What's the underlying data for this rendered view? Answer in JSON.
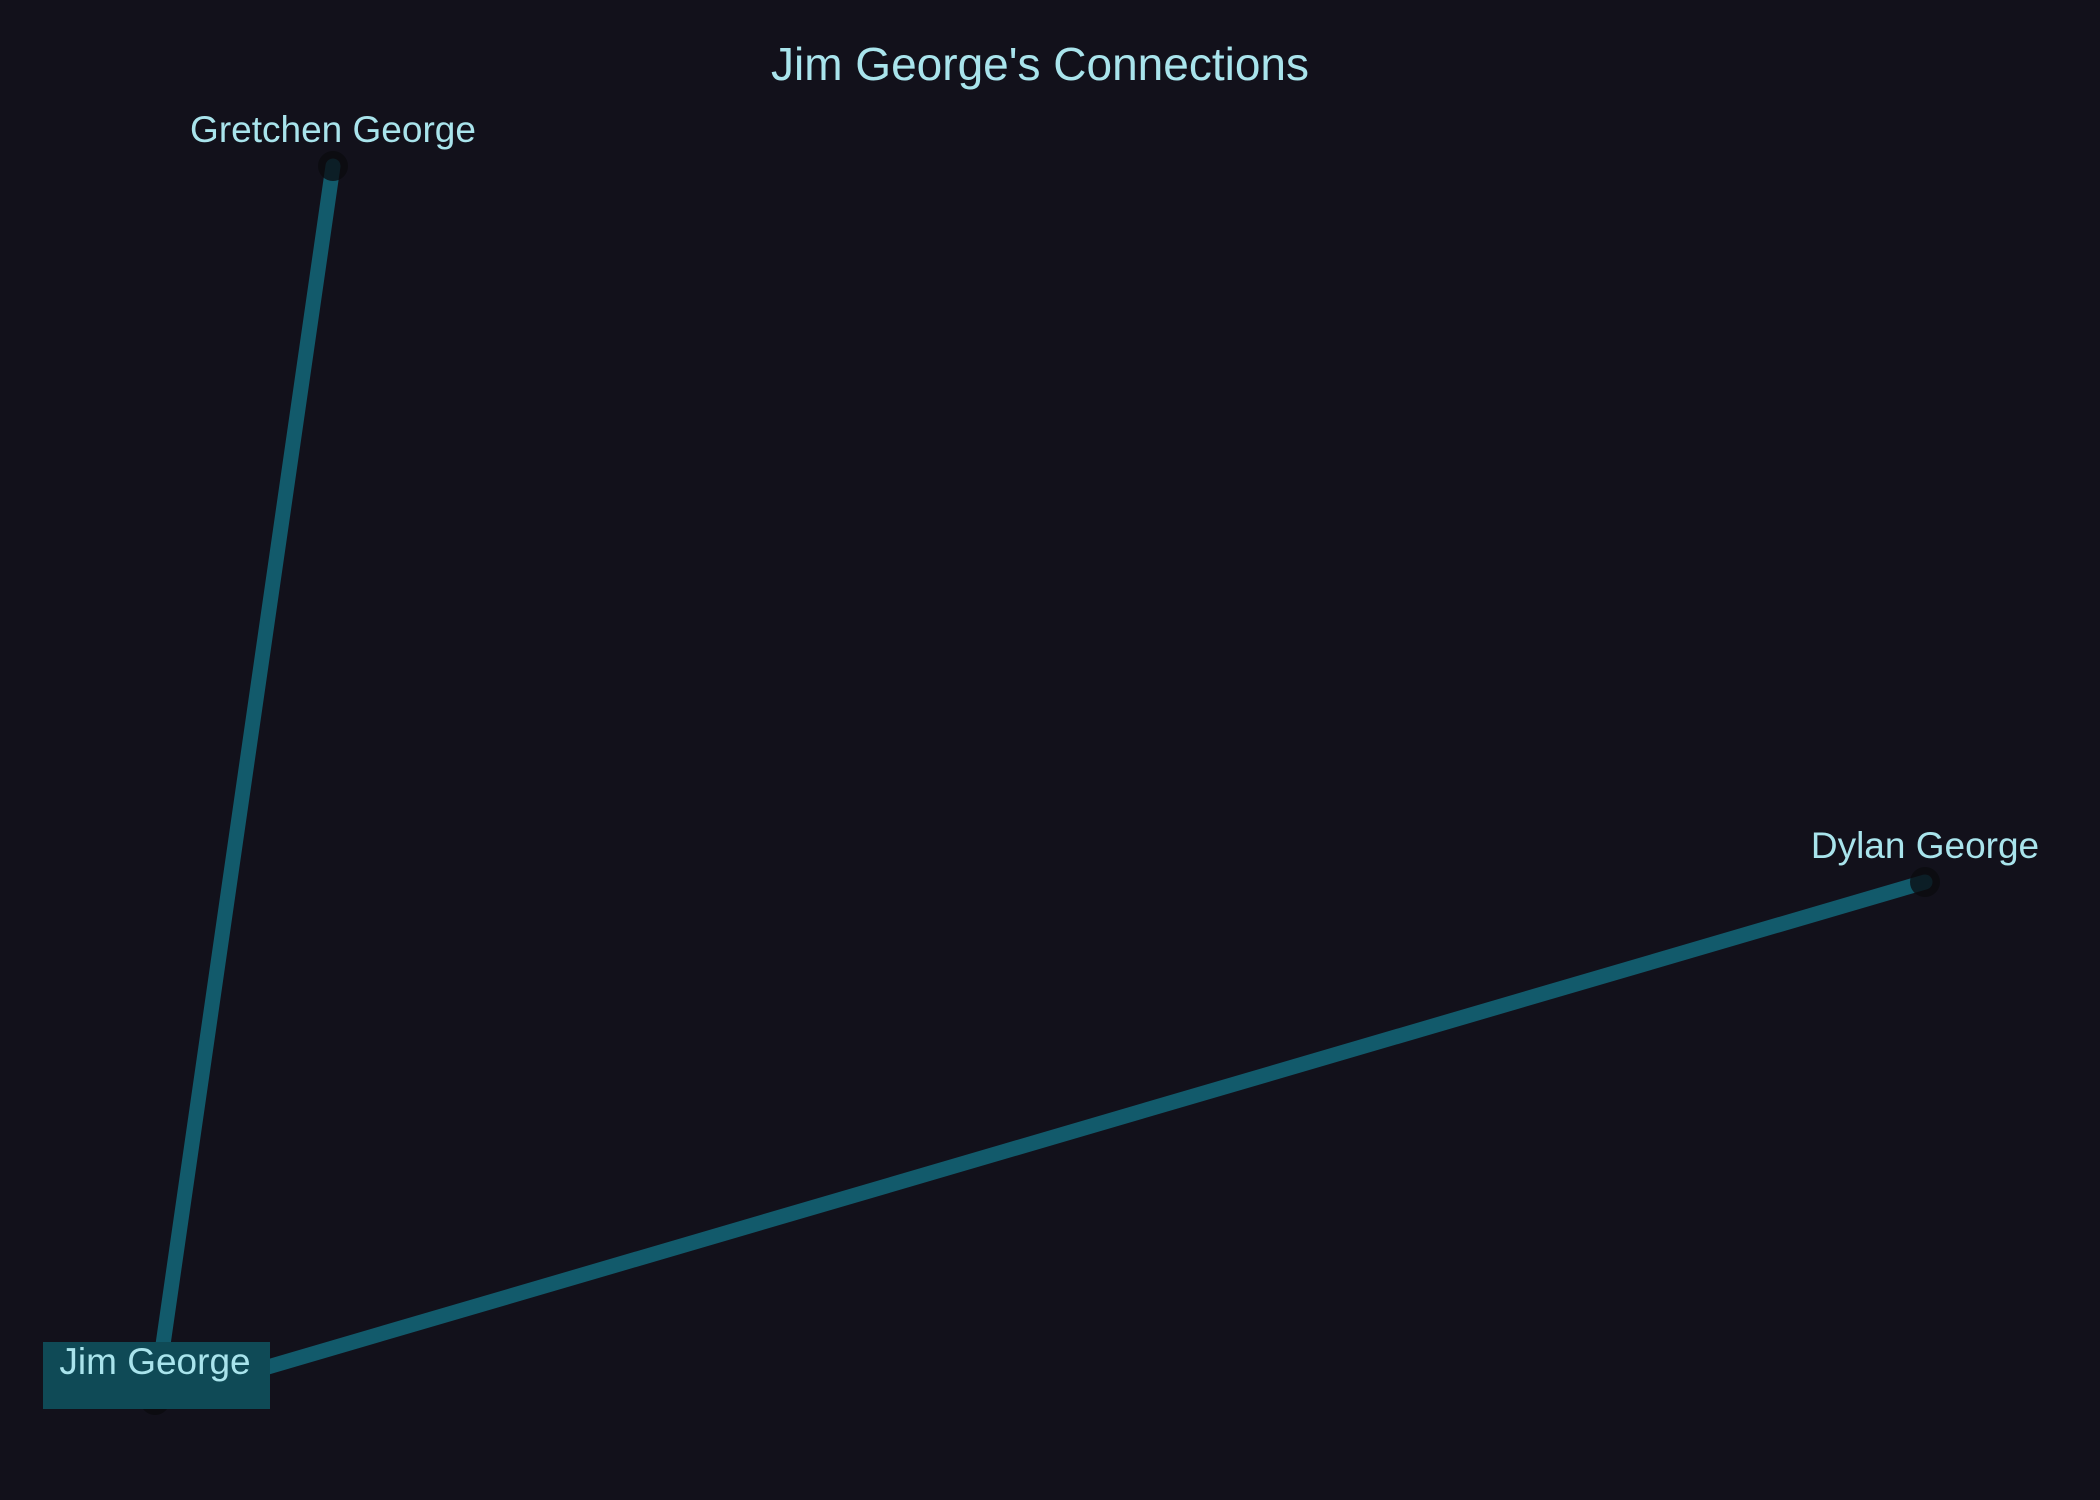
{
  "title": "Jim George's Connections",
  "colors": {
    "background": "#12111b",
    "text": "#a9e4ec",
    "edge": "#125a6b",
    "node": "#0b0b0f",
    "highlight_box": "#0f4a56"
  },
  "graph": {
    "central_node": "Jim George",
    "nodes": [
      {
        "id": "jim",
        "label": "Jim George",
        "highlighted": true
      },
      {
        "id": "gretchen",
        "label": "Gretchen George",
        "highlighted": false
      },
      {
        "id": "dylan",
        "label": "Dylan George",
        "highlighted": false
      }
    ],
    "edges": [
      {
        "from": "jim",
        "to": "gretchen"
      },
      {
        "from": "jim",
        "to": "dylan"
      }
    ]
  }
}
